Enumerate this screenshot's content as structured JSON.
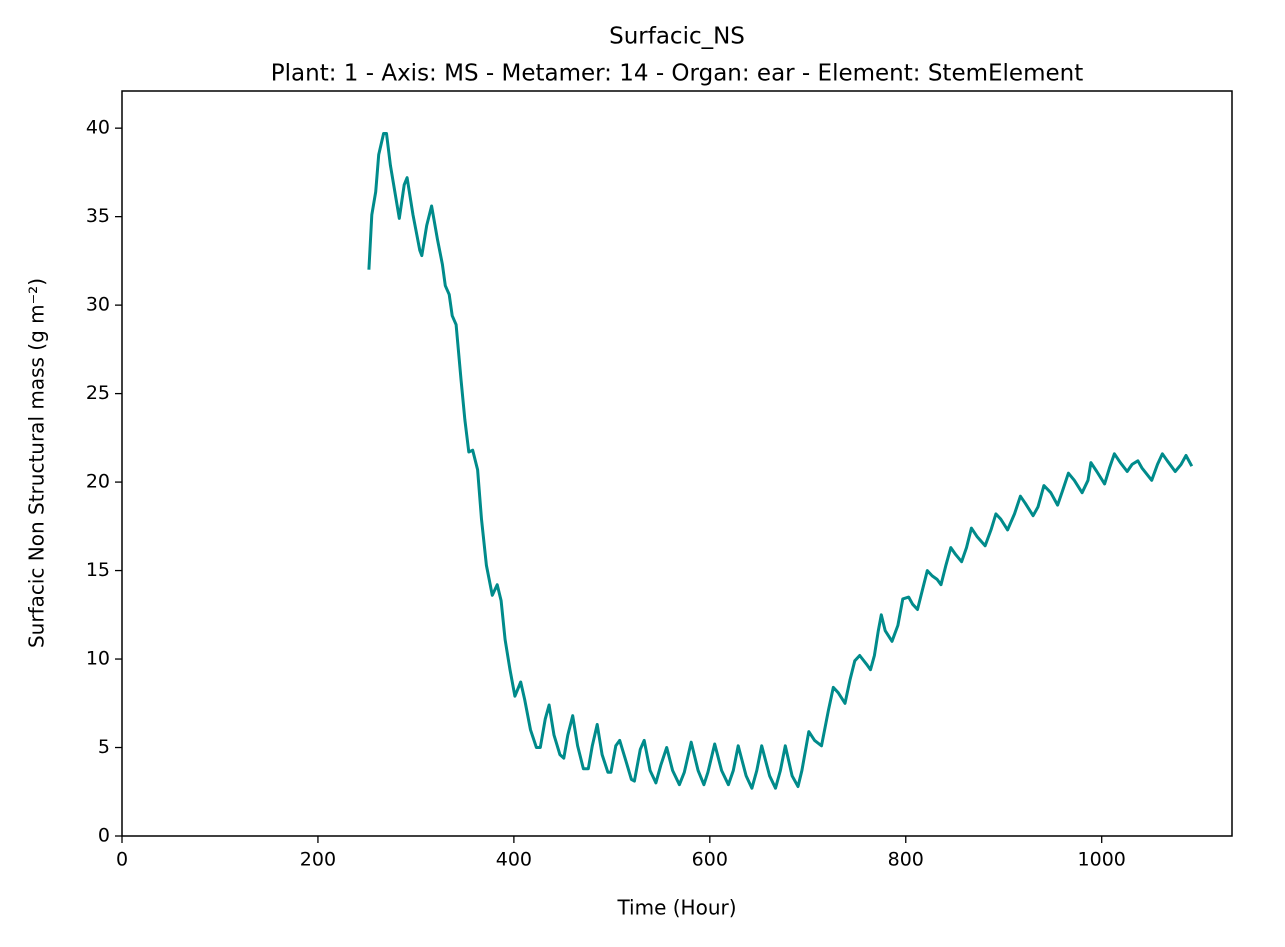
{
  "chart_data": {
    "type": "line",
    "title": "Surfacic_NS",
    "subtitle": "Plant: 1 - Axis: MS - Metamer: 14 - Organ: ear - Element: StemElement",
    "x_label": "Time (Hour)",
    "y_label": "Surfacic Non Structural mass (g m⁻²)",
    "xlim": [
      0,
      1133
    ],
    "ylim": [
      0,
      42.1
    ],
    "xticks": [
      0,
      200,
      400,
      600,
      800,
      1000
    ],
    "yticks": [
      0,
      5,
      10,
      15,
      20,
      25,
      30,
      35,
      40
    ],
    "grid": false,
    "series": [
      {
        "color": "#008b8b",
        "x": [
          252,
          255,
          259,
          262,
          267,
          270,
          274,
          283,
          288,
          291,
          297,
          304,
          306,
          311,
          316,
          322,
          327,
          330,
          334,
          337,
          341,
          346,
          350,
          354,
          358,
          363,
          367,
          372,
          378,
          383,
          387,
          391,
          396,
          401,
          407,
          411,
          417,
          423,
          427,
          432,
          436,
          441,
          447,
          451,
          455,
          460,
          465,
          471,
          476,
          480,
          485,
          490,
          496,
          499,
          504,
          508,
          514,
          520,
          523,
          529,
          533,
          539,
          545,
          550,
          556,
          562,
          569,
          574,
          581,
          588,
          594,
          598,
          605,
          612,
          619,
          624,
          629,
          637,
          643,
          648,
          653,
          661,
          667,
          672,
          677,
          684,
          690,
          694,
          701,
          707,
          714,
          721,
          726,
          731,
          738,
          743,
          748,
          753,
          760,
          764,
          768,
          772,
          775,
          779,
          786,
          792,
          797,
          803,
          807,
          812,
          817,
          822,
          827,
          832,
          836,
          841,
          846,
          851,
          857,
          862,
          867,
          873,
          881,
          887,
          892,
          897,
          904,
          911,
          917,
          922,
          930,
          935,
          941,
          948,
          955,
          960,
          966,
          972,
          980,
          986,
          989,
          995,
          1003,
          1008,
          1013,
          1019,
          1026,
          1031,
          1037,
          1041,
          1051,
          1057,
          1062,
          1067,
          1075,
          1081,
          1086,
          1092
        ],
        "values": [
          32.0,
          35.1,
          36.4,
          38.5,
          39.7,
          39.7,
          37.9,
          34.9,
          36.8,
          37.2,
          35.1,
          33.1,
          32.8,
          34.5,
          35.6,
          33.7,
          32.3,
          31.1,
          30.6,
          29.4,
          28.9,
          25.8,
          23.5,
          21.7,
          21.8,
          20.7,
          17.9,
          15.3,
          13.6,
          14.2,
          13.3,
          11.1,
          9.4,
          7.9,
          8.7,
          7.7,
          6.0,
          5.0,
          5.0,
          6.6,
          7.4,
          5.7,
          4.6,
          4.4,
          5.7,
          6.8,
          5.1,
          3.8,
          3.8,
          5.1,
          6.3,
          4.6,
          3.6,
          3.6,
          5.1,
          5.4,
          4.3,
          3.2,
          3.1,
          4.9,
          5.4,
          3.7,
          3.0,
          4.0,
          5.0,
          3.7,
          2.9,
          3.6,
          5.3,
          3.7,
          2.9,
          3.6,
          5.2,
          3.7,
          2.9,
          3.7,
          5.1,
          3.4,
          2.7,
          3.7,
          5.1,
          3.4,
          2.7,
          3.7,
          5.1,
          3.4,
          2.8,
          3.7,
          5.9,
          5.4,
          5.1,
          7.1,
          8.4,
          8.1,
          7.5,
          8.8,
          9.9,
          10.2,
          9.7,
          9.4,
          10.2,
          11.6,
          12.5,
          11.6,
          11.0,
          11.9,
          13.4,
          13.5,
          13.1,
          12.8,
          13.9,
          15.0,
          14.7,
          14.5,
          14.2,
          15.3,
          16.3,
          15.9,
          15.5,
          16.3,
          17.4,
          16.9,
          16.4,
          17.3,
          18.2,
          17.9,
          17.3,
          18.2,
          19.2,
          18.8,
          18.1,
          18.6,
          19.8,
          19.4,
          18.7,
          19.5,
          20.5,
          20.1,
          19.4,
          20.1,
          21.1,
          20.6,
          19.9,
          20.8,
          21.6,
          21.1,
          20.6,
          21.0,
          21.2,
          20.8,
          20.1,
          21.0,
          21.6,
          21.2,
          20.6,
          21.0,
          21.5,
          20.9
        ]
      }
    ]
  }
}
